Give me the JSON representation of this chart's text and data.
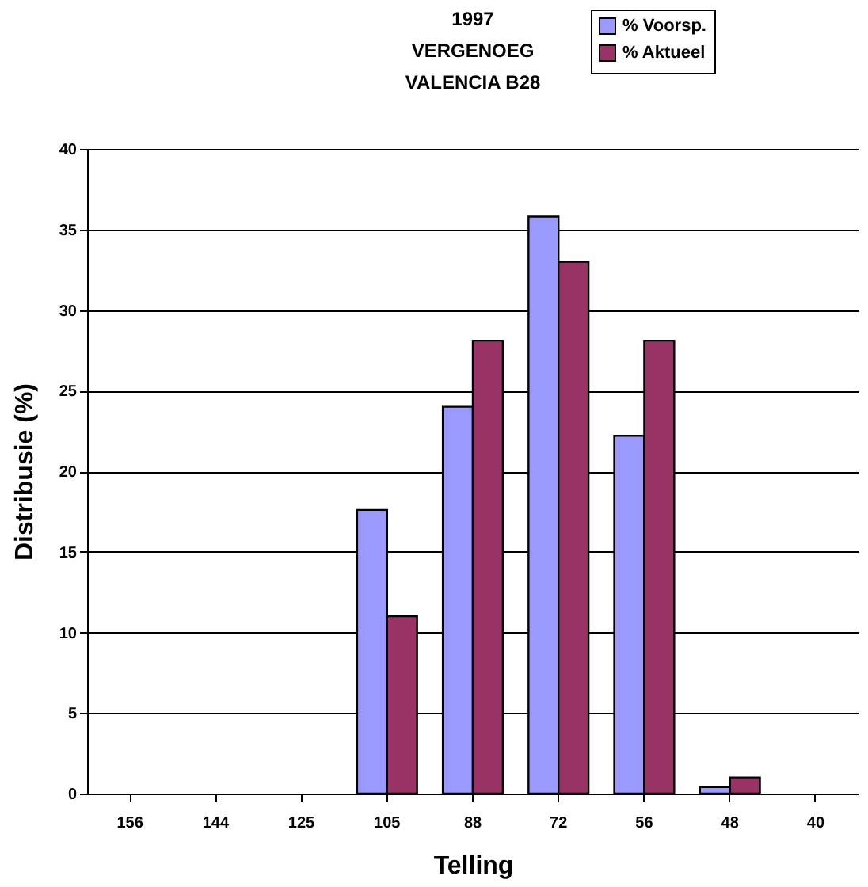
{
  "chart_data": {
    "type": "bar",
    "title": [
      "1997",
      "VERGENOEG",
      "VALENCIA B28"
    ],
    "xlabel": "Telling",
    "ylabel": "Distribusie (%)",
    "categories": [
      "156",
      "144",
      "125",
      "105",
      "88",
      "72",
      "56",
      "48",
      "40"
    ],
    "series": [
      {
        "name": "% Voorsp.",
        "color": "#9999ff",
        "values": [
          0,
          0,
          0,
          17.6,
          24,
          35.8,
          22.2,
          0.4,
          0
        ]
      },
      {
        "name": "% Aktueel",
        "color": "#993366",
        "values": [
          0,
          0,
          0,
          11,
          28.1,
          33,
          28.1,
          1.0,
          0
        ]
      }
    ],
    "ylim": [
      0,
      40
    ],
    "yticks": [
      0,
      5,
      10,
      15,
      20,
      25,
      30,
      35,
      40
    ],
    "grid": "y",
    "legend": "top right"
  }
}
